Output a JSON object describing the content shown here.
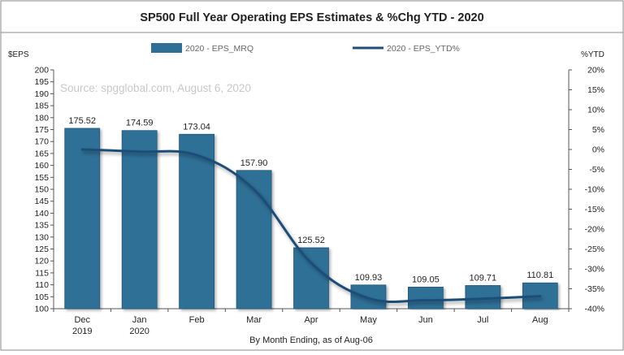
{
  "chart_data": {
    "type": "bar",
    "title": "SP500 Full Year Operating EPS Estimates & %Chg YTD - 2020",
    "source_note": "Source: spgglobal.com, August 6, 2020",
    "xlabel": "By Month Ending, as of Aug-06",
    "ylabel_left": "$EPS",
    "ylabel_right": "%YTD",
    "categories": [
      [
        "Dec",
        "2019"
      ],
      [
        "Jan",
        "2020"
      ],
      [
        "Feb"
      ],
      [
        "Mar"
      ],
      [
        "Apr"
      ],
      [
        "May"
      ],
      [
        "Jun"
      ],
      [
        "Jul"
      ],
      [
        "Aug"
      ]
    ],
    "ylim_left": [
      100,
      200
    ],
    "yticks_left": [
      "100",
      "105",
      "110",
      "115",
      "120",
      "125",
      "130",
      "135",
      "140",
      "145",
      "150",
      "155",
      "160",
      "165",
      "170",
      "175",
      "180",
      "185",
      "190",
      "195",
      "200"
    ],
    "ylim_right": [
      -40,
      20
    ],
    "yticks_right": [
      "-40%",
      "-35%",
      "-30%",
      "-25%",
      "-20%",
      "-15%",
      "-10%",
      "-5%",
      "0%",
      "5%",
      "10%",
      "15%",
      "20%"
    ],
    "legend_position": "top-center",
    "grid": false,
    "series": [
      {
        "name": "2020 - EPS_MRQ",
        "kind": "bar",
        "axis": "left",
        "color": "#2e6f96",
        "values": [
          175.52,
          174.59,
          173.04,
          157.9,
          125.52,
          109.93,
          109.05,
          109.71,
          110.81
        ],
        "labels": [
          "175.52",
          "174.59",
          "173.04",
          "157.90",
          "125.52",
          "109.93",
          "109.05",
          "109.71",
          "110.81"
        ]
      },
      {
        "name": "2020 - EPS_YTD%",
        "kind": "line",
        "axis": "right",
        "color": "#1f4e79",
        "values": [
          0.0,
          -0.53,
          -1.41,
          -10.04,
          -28.49,
          -37.37,
          -37.87,
          -37.49,
          -36.87
        ]
      }
    ]
  }
}
